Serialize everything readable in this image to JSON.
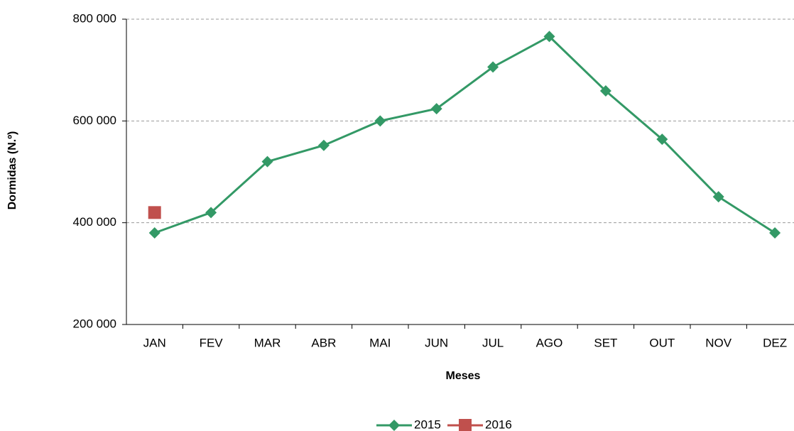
{
  "chart_data": {
    "type": "line",
    "xlabel": "Meses",
    "ylabel": "Dormidas (N.º)",
    "categories": [
      "JAN",
      "FEV",
      "MAR",
      "ABR",
      "MAI",
      "JUN",
      "JUL",
      "AGO",
      "SET",
      "OUT",
      "NOV",
      "DEZ"
    ],
    "series": [
      {
        "name": "2015",
        "color": "#339966",
        "marker": "diamond",
        "values": [
          380000,
          420000,
          520000,
          552000,
          600000,
          624000,
          706000,
          766000,
          659000,
          564000,
          451000,
          380000
        ]
      },
      {
        "name": "2016",
        "color": "#c0504d",
        "marker": "square",
        "values": [
          420000,
          null,
          null,
          null,
          null,
          null,
          null,
          null,
          null,
          null,
          null,
          null
        ]
      }
    ],
    "ylim": [
      200000,
      800000
    ],
    "yticks": [
      {
        "value": 200000,
        "label": "200 000"
      },
      {
        "value": 400000,
        "label": "400 000"
      },
      {
        "value": 600000,
        "label": "600 000"
      },
      {
        "value": 800000,
        "label": "800 000"
      }
    ],
    "grid": true,
    "legend": "bottom"
  }
}
